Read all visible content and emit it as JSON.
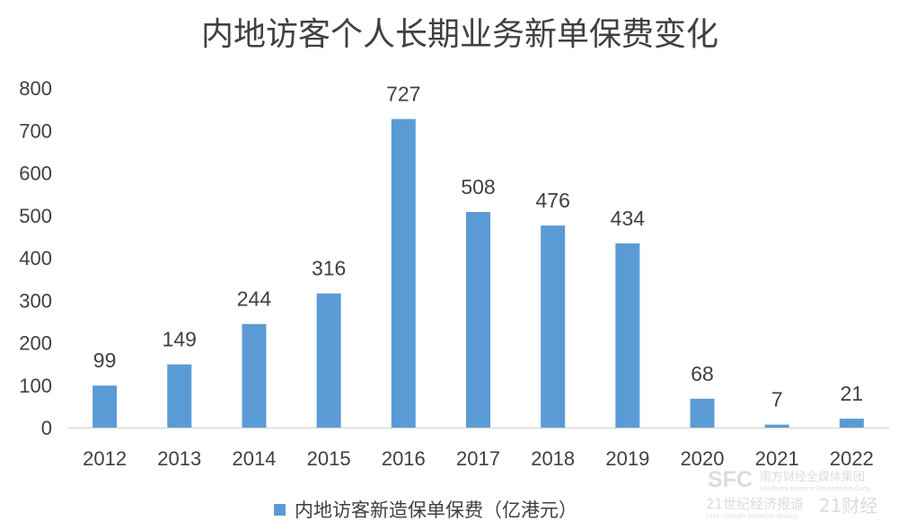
{
  "chart_data": {
    "type": "bar",
    "title": "内地访客个人长期业务新单保费变化",
    "categories": [
      "2012",
      "2013",
      "2014",
      "2015",
      "2016",
      "2017",
      "2018",
      "2019",
      "2020",
      "2021",
      "2022"
    ],
    "series": [
      {
        "name": "内地访客新造保单保费（亿港元）",
        "values": [
          99,
          149,
          244,
          316,
          727,
          508,
          476,
          434,
          68,
          7,
          21
        ],
        "color": "#5b9bd5"
      }
    ],
    "ylim": [
      0,
      800
    ],
    "yticks": [
      0,
      100,
      200,
      300,
      400,
      500,
      600,
      700,
      800
    ],
    "grid": false,
    "legend_position": "bottom"
  },
  "watermark": {
    "brand_main": "SFC",
    "brand_cn": "南方财经全媒体集团",
    "brand_en": "Southern Finance Omnimedia Corp.",
    "paper": "21世纪经济报道",
    "paper_en": "21ST CENTURY BUSINESS HERALD",
    "app": "21财经"
  }
}
